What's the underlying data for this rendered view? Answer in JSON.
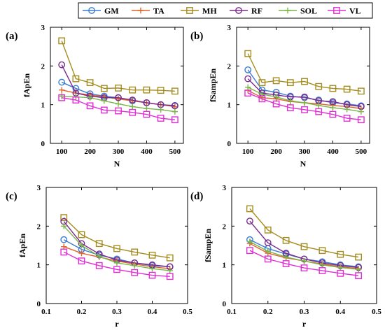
{
  "legend": {
    "entries": [
      {
        "name": "GM",
        "color": "#3a7bd5",
        "marker": "circle"
      },
      {
        "name": "TA",
        "color": "#e3622a",
        "marker": "plus"
      },
      {
        "name": "MH",
        "color": "#a58c1e",
        "marker": "square"
      },
      {
        "name": "RF",
        "color": "#7a2a8c",
        "marker": "circle"
      },
      {
        "name": "SOL",
        "color": "#7ab648",
        "marker": "plus"
      },
      {
        "name": "VL",
        "color": "#e02fd4",
        "marker": "square"
      }
    ]
  },
  "chart_data": [
    {
      "panel_label": "(a)",
      "type": "line",
      "xlabel": "N",
      "ylabel": "fApEn",
      "xlim": [
        60,
        530
      ],
      "ylim": [
        0,
        3
      ],
      "xticks": [
        100,
        200,
        300,
        400,
        500
      ],
      "yticks": [
        0,
        1,
        2,
        3
      ],
      "x": [
        100,
        150,
        200,
        250,
        300,
        350,
        400,
        450,
        500
      ],
      "series": [
        {
          "name": "GM",
          "values": [
            1.58,
            1.42,
            1.28,
            1.22,
            1.18,
            1.1,
            1.05,
            1.0,
            0.98
          ]
        },
        {
          "name": "TA",
          "values": [
            1.38,
            1.3,
            1.25,
            1.2,
            1.15,
            1.1,
            1.05,
            1.0,
            0.95
          ]
        },
        {
          "name": "MH",
          "values": [
            2.65,
            1.67,
            1.57,
            1.42,
            1.43,
            1.38,
            1.38,
            1.37,
            1.35
          ]
        },
        {
          "name": "RF",
          "values": [
            2.03,
            1.3,
            1.22,
            1.18,
            1.18,
            1.12,
            1.05,
            1.0,
            0.97
          ]
        },
        {
          "name": "SOL",
          "values": [
            1.22,
            1.2,
            1.18,
            1.1,
            1.02,
            0.95,
            0.9,
            0.87,
            0.82
          ]
        },
        {
          "name": "VL",
          "values": [
            1.18,
            1.12,
            0.97,
            0.86,
            0.84,
            0.8,
            0.75,
            0.65,
            0.61
          ]
        }
      ]
    },
    {
      "panel_label": "(b)",
      "type": "line",
      "xlabel": "N",
      "ylabel": "fSampEn",
      "xlim": [
        60,
        530
      ],
      "ylim": [
        0,
        3
      ],
      "xticks": [
        100,
        200,
        300,
        400,
        500
      ],
      "yticks": [
        0,
        1,
        2,
        3
      ],
      "x": [
        100,
        150,
        200,
        250,
        300,
        350,
        400,
        450,
        500
      ],
      "series": [
        {
          "name": "GM",
          "values": [
            1.9,
            1.38,
            1.32,
            1.22,
            1.18,
            1.12,
            1.05,
            1.02,
            0.97
          ]
        },
        {
          "name": "TA",
          "values": [
            1.37,
            1.18,
            1.15,
            1.08,
            1.05,
            1.02,
            0.98,
            0.95,
            0.9
          ]
        },
        {
          "name": "MH",
          "values": [
            2.32,
            1.57,
            1.62,
            1.57,
            1.6,
            1.47,
            1.42,
            1.4,
            1.35
          ]
        },
        {
          "name": "RF",
          "values": [
            1.67,
            1.3,
            1.25,
            1.2,
            1.2,
            1.1,
            1.08,
            1.0,
            0.95
          ]
        },
        {
          "name": "SOL",
          "values": [
            1.45,
            1.27,
            1.2,
            1.1,
            1.05,
            0.98,
            0.92,
            0.88,
            0.82
          ]
        },
        {
          "name": "VL",
          "values": [
            1.3,
            1.15,
            1.02,
            0.92,
            0.87,
            0.82,
            0.75,
            0.65,
            0.61
          ]
        }
      ]
    },
    {
      "panel_label": "(c)",
      "type": "line",
      "xlabel": "r",
      "ylabel": "fApEn",
      "xlim": [
        0.1,
        0.5
      ],
      "ylim": [
        0,
        3
      ],
      "xticks": [
        0.1,
        0.2,
        0.3,
        0.4,
        0.5
      ],
      "yticks": [
        0,
        1,
        2,
        3
      ],
      "x": [
        0.15,
        0.2,
        0.25,
        0.3,
        0.35,
        0.4,
        0.45
      ],
      "series": [
        {
          "name": "GM",
          "values": [
            1.65,
            1.4,
            1.25,
            1.15,
            1.05,
            0.98,
            0.95
          ]
        },
        {
          "name": "TA",
          "values": [
            1.47,
            1.3,
            1.2,
            1.1,
            1.02,
            0.95,
            0.9
          ]
        },
        {
          "name": "MH",
          "values": [
            2.22,
            1.78,
            1.55,
            1.42,
            1.33,
            1.25,
            1.18
          ]
        },
        {
          "name": "RF",
          "values": [
            2.12,
            1.55,
            1.28,
            1.12,
            1.05,
            1.0,
            0.95
          ]
        },
        {
          "name": "SOL",
          "values": [
            2.0,
            1.5,
            1.22,
            1.05,
            0.98,
            0.9,
            0.85
          ]
        },
        {
          "name": "VL",
          "values": [
            1.33,
            1.1,
            0.98,
            0.88,
            0.8,
            0.73,
            0.7
          ]
        }
      ]
    },
    {
      "panel_label": "(d)",
      "type": "line",
      "xlabel": "r",
      "ylabel": "fSampEn",
      "xlim": [
        0.1,
        0.5
      ],
      "ylim": [
        0,
        3
      ],
      "xticks": [
        0.1,
        0.2,
        0.3,
        0.4,
        0.5
      ],
      "yticks": [
        0,
        1,
        2,
        3
      ],
      "x": [
        0.15,
        0.2,
        0.25,
        0.3,
        0.35,
        0.4,
        0.45
      ],
      "series": [
        {
          "name": "GM",
          "values": [
            1.65,
            1.42,
            1.28,
            1.15,
            1.08,
            1.0,
            0.95
          ]
        },
        {
          "name": "TA",
          "values": [
            1.55,
            1.3,
            1.18,
            1.1,
            1.02,
            0.95,
            0.9
          ]
        },
        {
          "name": "MH",
          "values": [
            2.45,
            1.9,
            1.63,
            1.47,
            1.37,
            1.27,
            1.2
          ]
        },
        {
          "name": "RF",
          "values": [
            2.13,
            1.57,
            1.3,
            1.15,
            1.05,
            0.98,
            0.93
          ]
        },
        {
          "name": "SOL",
          "values": [
            1.6,
            1.35,
            1.2,
            1.1,
            1.0,
            0.93,
            0.88
          ]
        },
        {
          "name": "VL",
          "values": [
            1.37,
            1.15,
            1.03,
            0.92,
            0.85,
            0.78,
            0.72
          ]
        }
      ]
    }
  ]
}
